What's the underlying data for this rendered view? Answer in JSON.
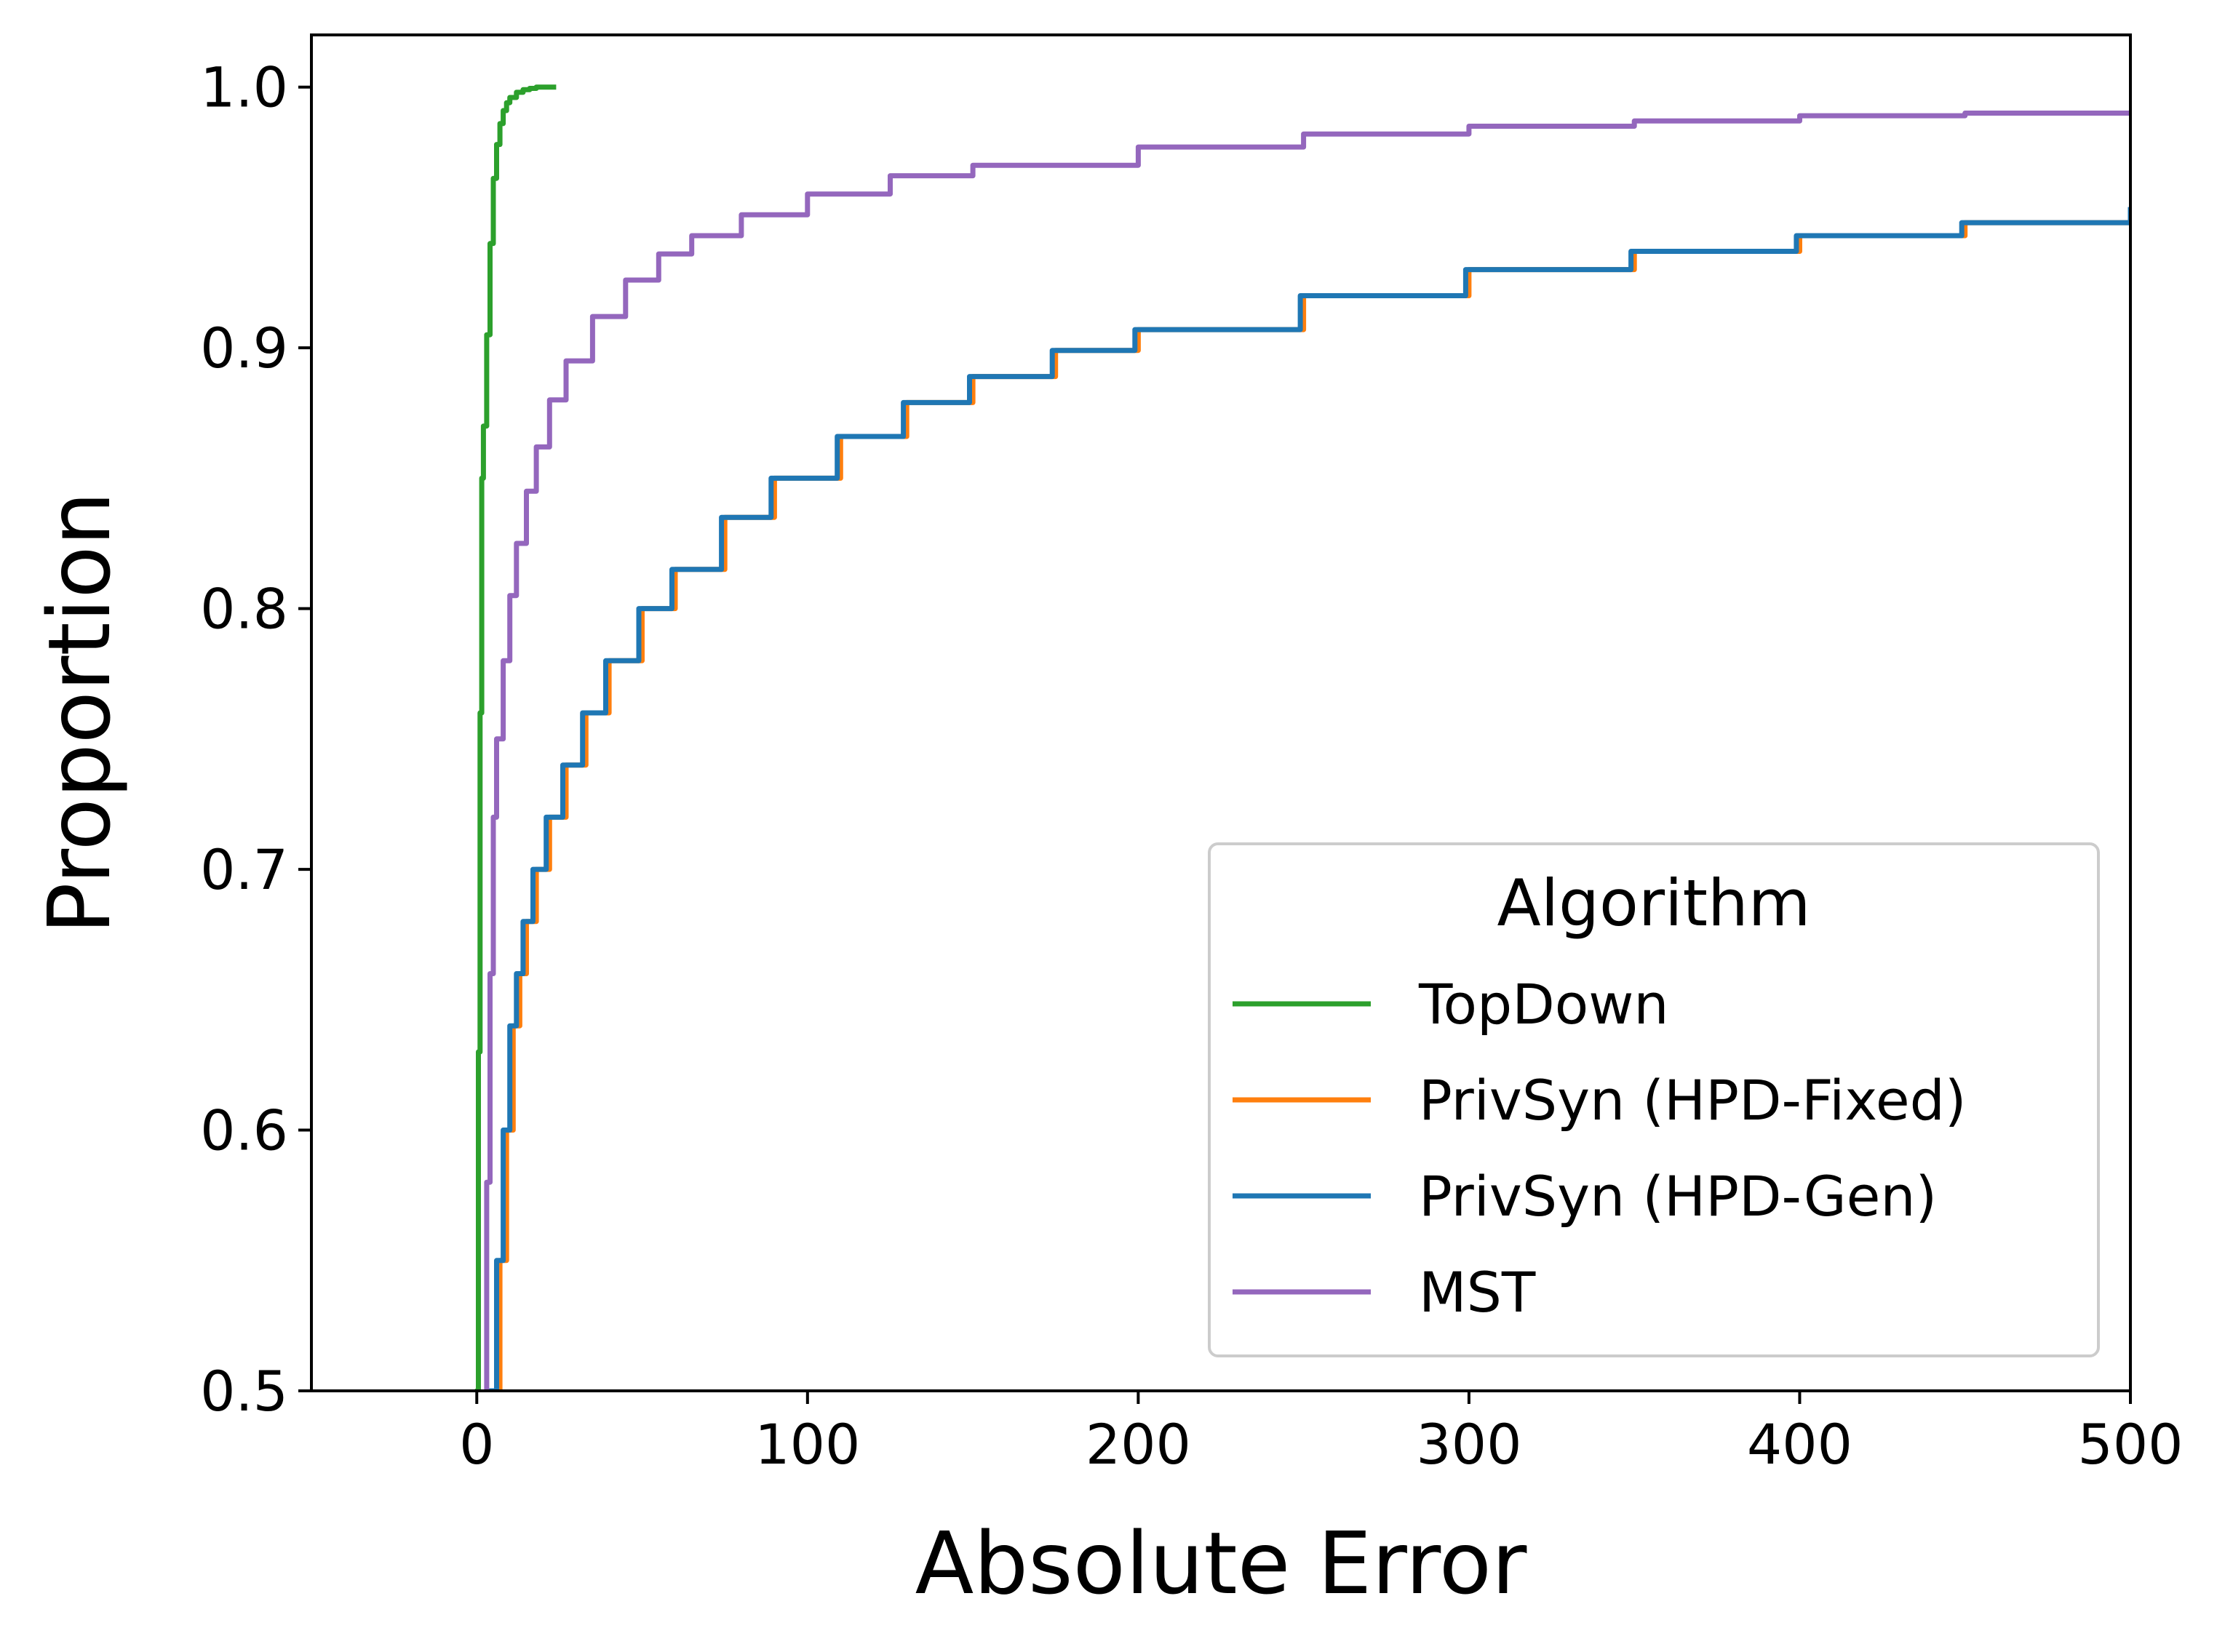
{
  "chart_data": {
    "type": "line",
    "title": "",
    "xlabel": "Absolute Error",
    "ylabel": "Proportion",
    "xlim": [
      -50,
      500
    ],
    "ylim": [
      0.5,
      1.02
    ],
    "x_ticks": [
      0,
      100,
      200,
      300,
      400,
      500
    ],
    "x_tick_labels": [
      "0",
      "100",
      "200",
      "300",
      "400",
      "500"
    ],
    "y_ticks": [
      0.5,
      0.6,
      0.7,
      0.8,
      0.9,
      1.0
    ],
    "y_tick_labels": [
      "0.5",
      "0.6",
      "0.7",
      "0.8",
      "0.9",
      "1.0"
    ],
    "grid": false,
    "legend": {
      "title": "Algorithm",
      "placement": "lower-right",
      "entries": [
        "TopDown",
        "PrivSyn (HPD-Fixed)",
        "PrivSyn (HPD-Gen)",
        "MST"
      ]
    },
    "series": [
      {
        "name": "TopDown",
        "color": "#2ca02c",
        "x": [
          0,
          0.5,
          1,
          1.5,
          2,
          3,
          4,
          5,
          6,
          7,
          8,
          9,
          10,
          12,
          14,
          16,
          18,
          20,
          22,
          24
        ],
        "y": [
          0.5,
          0.63,
          0.76,
          0.85,
          0.87,
          0.905,
          0.94,
          0.965,
          0.978,
          0.986,
          0.991,
          0.994,
          0.996,
          0.998,
          0.999,
          0.9995,
          1.0,
          1.0,
          1.0,
          1.0
        ]
      },
      {
        "name": "PrivSyn (HPD-Fixed)",
        "color": "#ff7f0e",
        "x": [
          5,
          7,
          9,
          11,
          13,
          15,
          18,
          22,
          27,
          33,
          40,
          50,
          60,
          75,
          90,
          110,
          130,
          150,
          175,
          200,
          250,
          300,
          350,
          400,
          450,
          500
        ],
        "y": [
          0.5,
          0.55,
          0.6,
          0.64,
          0.66,
          0.68,
          0.7,
          0.72,
          0.74,
          0.76,
          0.78,
          0.8,
          0.815,
          0.835,
          0.85,
          0.866,
          0.879,
          0.889,
          0.899,
          0.907,
          0.92,
          0.93,
          0.937,
          0.943,
          0.948,
          0.953
        ]
      },
      {
        "name": "PrivSyn (HPD-Gen)",
        "color": "#1f77b4",
        "x": [
          4,
          6,
          8,
          10,
          12,
          14,
          17,
          21,
          26,
          32,
          39,
          49,
          59,
          74,
          89,
          109,
          129,
          149,
          174,
          199,
          249,
          299,
          349,
          399,
          449,
          500
        ],
        "y": [
          0.5,
          0.55,
          0.6,
          0.64,
          0.66,
          0.68,
          0.7,
          0.72,
          0.74,
          0.76,
          0.78,
          0.8,
          0.815,
          0.835,
          0.85,
          0.866,
          0.879,
          0.889,
          0.899,
          0.907,
          0.92,
          0.93,
          0.937,
          0.943,
          0.948,
          0.954
        ]
      },
      {
        "name": "MST",
        "color": "#9467bd",
        "x": [
          3,
          4,
          5,
          6,
          8,
          10,
          12,
          15,
          18,
          22,
          27,
          35,
          45,
          55,
          65,
          80,
          100,
          125,
          150,
          200,
          250,
          300,
          350,
          400,
          450,
          500
        ],
        "y": [
          0.58,
          0.66,
          0.72,
          0.75,
          0.78,
          0.805,
          0.825,
          0.845,
          0.862,
          0.88,
          0.895,
          0.912,
          0.926,
          0.936,
          0.943,
          0.951,
          0.959,
          0.966,
          0.97,
          0.977,
          0.982,
          0.985,
          0.987,
          0.989,
          0.99,
          0.991
        ]
      }
    ]
  }
}
